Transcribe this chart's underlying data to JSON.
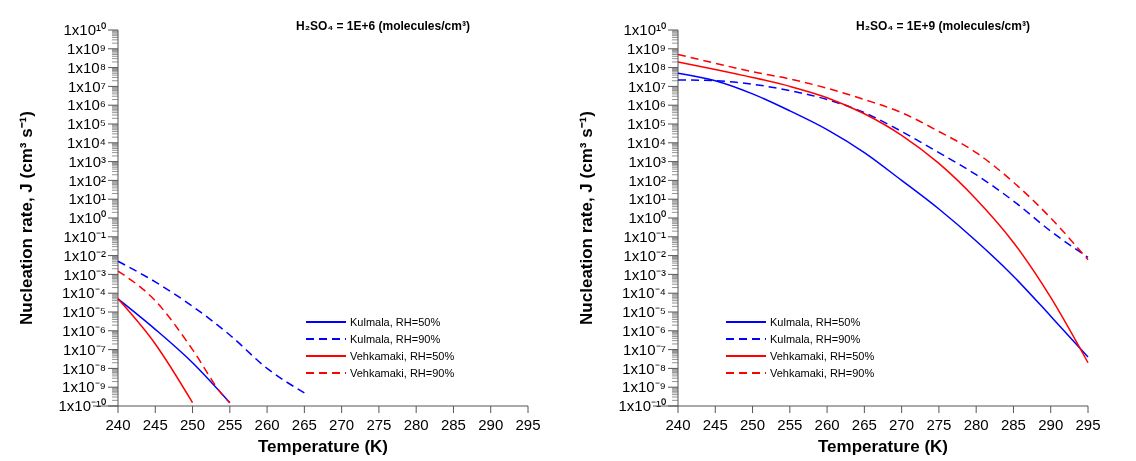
{
  "chart_data": [
    {
      "type": "line",
      "title": "H₂SO₄ = 1E+6 (molecules/cm³)",
      "xlabel": "Temperature (K)",
      "ylabel": "Nucleation rate, J (cm³ s⁻¹)",
      "log": "y",
      "legend": "bottom right",
      "xlim": [
        240,
        295
      ],
      "xticks": [
        240,
        245,
        250,
        255,
        260,
        265,
        270,
        275,
        280,
        285,
        290,
        295
      ],
      "ylim": [
        1e-10,
        10000000000.0
      ],
      "yticks": [
        {
          "value": 1e-10,
          "label": "1x10⁻¹⁰"
        },
        {
          "value": 1e-09,
          "label": "1x10⁻⁹"
        },
        {
          "value": 1e-08,
          "label": "1x10⁻⁸"
        },
        {
          "value": 1e-07,
          "label": "1x10⁻⁷"
        },
        {
          "value": 1e-06,
          "label": "1x10⁻⁶"
        },
        {
          "value": 1e-05,
          "label": "1x10⁻⁵"
        },
        {
          "value": 0.0001,
          "label": "1x10⁻⁴"
        },
        {
          "value": 0.001,
          "label": "1x10⁻³"
        },
        {
          "value": 0.01,
          "label": "1x10⁻²"
        },
        {
          "value": 0.1,
          "label": "1x10⁻¹"
        },
        {
          "value": 1,
          "label": "1x10⁰"
        },
        {
          "value": 10,
          "label": "1x10¹"
        },
        {
          "value": 100,
          "label": "1x10²"
        },
        {
          "value": 1000.0,
          "label": "1x10³"
        },
        {
          "value": 10000.0,
          "label": "1x10⁴"
        },
        {
          "value": 100000.0,
          "label": "1x10⁵"
        },
        {
          "value": 1000000.0,
          "label": "1x10⁶"
        },
        {
          "value": 10000000.0,
          "label": "1x10⁷"
        },
        {
          "value": 100000000.0,
          "label": "1x10⁸"
        },
        {
          "value": 1000000000.0,
          "label": "1x10⁹"
        },
        {
          "value": 10000000000.0,
          "label": "1x10¹⁰"
        }
      ],
      "series": [
        {
          "name": "Kulmala, RH=50%",
          "color": "#0000ff",
          "line_style": "solid",
          "x": [
            240,
            245,
            250,
            255
          ],
          "values": [
            5e-05,
            1.2e-06,
            2e-08,
            1.5e-10
          ]
        },
        {
          "name": "Kulmala, RH=90%",
          "color": "#0000ff",
          "line_style": "dashed",
          "x": [
            240,
            245,
            250,
            255,
            260,
            265
          ],
          "values": [
            0.005,
            0.0004,
            2e-05,
            6e-07,
            1e-08,
            5e-10
          ]
        },
        {
          "name": "Vehkamaki, RH=50%",
          "color": "#ff0000",
          "line_style": "solid",
          "x": [
            240,
            245,
            250
          ],
          "values": [
            5e-05,
            2e-07,
            1.5e-10
          ]
        },
        {
          "name": "Vehkamaki, RH=90%",
          "color": "#ff0000",
          "line_style": "dashed",
          "x": [
            240,
            245,
            250,
            254,
            255
          ],
          "values": [
            0.0015,
            4e-05,
            1e-07,
            4e-10,
            1.5e-10
          ]
        }
      ]
    },
    {
      "type": "line",
      "title": "H₂SO₄ = 1E+9 (molecules/cm³)",
      "xlabel": "Temperature (K)",
      "ylabel": "Nucleation rate, J (cm³ s⁻¹)",
      "log": "y",
      "legend": "bottom left",
      "xlim": [
        240,
        295
      ],
      "xticks": [
        240,
        245,
        250,
        255,
        260,
        265,
        270,
        275,
        280,
        285,
        290,
        295
      ],
      "ylim": [
        1e-10,
        10000000000.0
      ],
      "yticks": [
        {
          "value": 1e-10,
          "label": "1x10⁻¹⁰"
        },
        {
          "value": 1e-09,
          "label": "1x10⁻⁹"
        },
        {
          "value": 1e-08,
          "label": "1x10⁻⁸"
        },
        {
          "value": 1e-07,
          "label": "1x10⁻⁷"
        },
        {
          "value": 1e-06,
          "label": "1x10⁻⁶"
        },
        {
          "value": 1e-05,
          "label": "1x10⁻⁵"
        },
        {
          "value": 0.0001,
          "label": "1x10⁻⁴"
        },
        {
          "value": 0.001,
          "label": "1x10⁻³"
        },
        {
          "value": 0.01,
          "label": "1x10⁻²"
        },
        {
          "value": 0.1,
          "label": "1x10⁻¹"
        },
        {
          "value": 1,
          "label": "1x10⁰"
        },
        {
          "value": 10,
          "label": "1x10¹"
        },
        {
          "value": 100,
          "label": "1x10²"
        },
        {
          "value": 1000.0,
          "label": "1x10³"
        },
        {
          "value": 10000.0,
          "label": "1x10⁴"
        },
        {
          "value": 100000.0,
          "label": "1x10⁵"
        },
        {
          "value": 1000000.0,
          "label": "1x10⁶"
        },
        {
          "value": 10000000.0,
          "label": "1x10⁷"
        },
        {
          "value": 100000000.0,
          "label": "1x10⁸"
        },
        {
          "value": 1000000000.0,
          "label": "1x10⁹"
        },
        {
          "value": 10000000000.0,
          "label": "1x10¹⁰"
        }
      ],
      "series": [
        {
          "name": "Kulmala, RH=50%",
          "color": "#0000ff",
          "line_style": "solid",
          "x": [
            240,
            245,
            250,
            255,
            260,
            265,
            270,
            275,
            280,
            285,
            290,
            295
          ],
          "values": [
            50000000.0,
            20000000.0,
            4000000.0,
            500000.0,
            50000.0,
            3000.0,
            100,
            3,
            0.06,
            0.0008,
            6e-06,
            4e-08
          ]
        },
        {
          "name": "Kulmala, RH=90%",
          "color": "#0000ff",
          "line_style": "dashed",
          "x": [
            240,
            245,
            250,
            255,
            260,
            265,
            270,
            275,
            280,
            285,
            290,
            295
          ],
          "values": [
            22000000.0,
            20000000.0,
            13000000.0,
            6000000.0,
            2000000.0,
            400000.0,
            40000.0,
            3000.0,
            200,
            8,
            0.2,
            0.008
          ]
        },
        {
          "name": "Vehkamaki, RH=50%",
          "color": "#ff0000",
          "line_style": "solid",
          "x": [
            240,
            245,
            250,
            255,
            260,
            265,
            270,
            275,
            280,
            285,
            290,
            295
          ],
          "values": [
            200000000.0,
            80000000.0,
            30000000.0,
            10000000.0,
            2500000.0,
            350000.0,
            25000.0,
            800,
            10,
            0.05,
            6e-05,
            2e-08
          ]
        },
        {
          "name": "Vehkamaki, RH=90%",
          "color": "#ff0000",
          "line_style": "dashed",
          "x": [
            240,
            245,
            250,
            255,
            260,
            265,
            270,
            275,
            280,
            285,
            290,
            295
          ],
          "values": [
            500000000.0,
            170000000.0,
            60000000.0,
            25000000.0,
            8000000.0,
            2000000.0,
            400000.0,
            40000.0,
            3000.0,
            80,
            1,
            0.006
          ]
        }
      ]
    }
  ]
}
